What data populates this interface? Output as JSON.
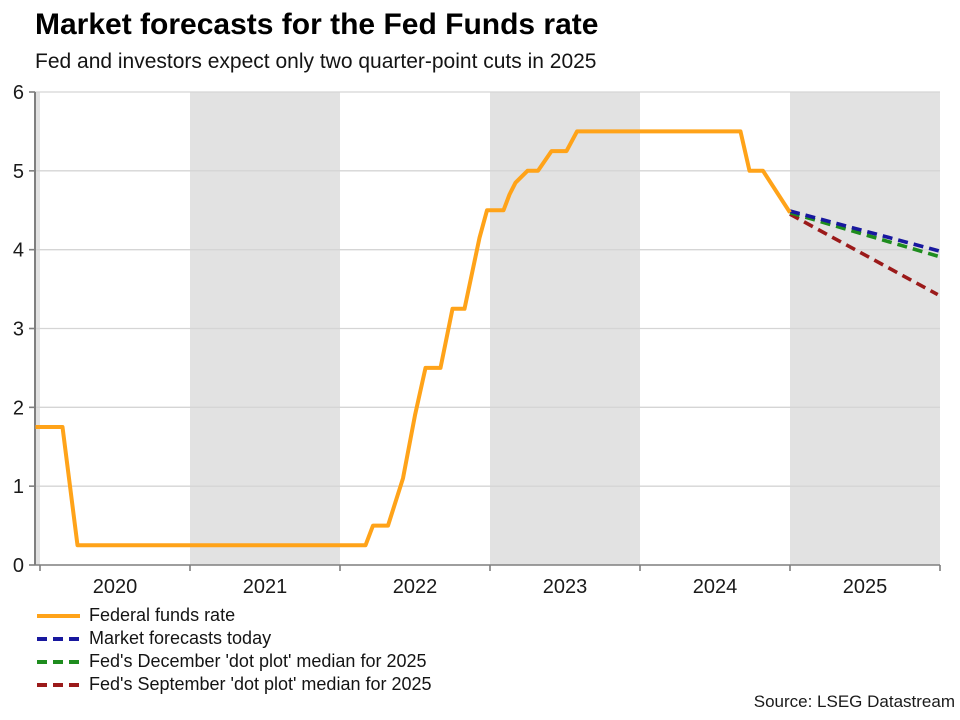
{
  "header": {
    "title": "Market forecasts for the Fed Funds rate",
    "subtitle": "Fed and investors expect only two quarter-point cuts in 2025"
  },
  "footer": {
    "source": "Source: LSEG Datastream"
  },
  "chart_data": {
    "type": "line",
    "title": "Market forecasts for the Fed Funds rate",
    "subtitle": "Fed and investors expect only two quarter-point cuts in 2025",
    "xlabel": "",
    "ylabel": "",
    "x_domain": [
      2019.967,
      2026.0
    ],
    "ylim": [
      0,
      6
    ],
    "y_ticks": [
      0,
      1,
      2,
      3,
      4,
      5,
      6
    ],
    "x_tick_years": [
      2020,
      2021,
      2022,
      2023,
      2024,
      2025,
      2026
    ],
    "x_tick_labels": [
      "2020",
      "2021",
      "2022",
      "2023",
      "2024",
      "2025"
    ],
    "grid": "horizontal",
    "legend_position": "bottom-left",
    "shaded_year_bands": [
      [
        2019.967,
        2020.0
      ],
      [
        2021.0,
        2022.0
      ],
      [
        2023.0,
        2024.0
      ],
      [
        2025.0,
        2026.0
      ]
    ],
    "colors": {
      "band": "#e2e2e2",
      "gridline": "#d5d5d5",
      "axis": "#7f7f7f",
      "tick_text": "#1a1a1a"
    },
    "series": [
      {
        "name": "Federal funds rate",
        "color": "#FFA319",
        "style": "solid",
        "points": [
          [
            2019.97,
            1.75
          ],
          [
            2020.15,
            1.75
          ],
          [
            2020.25,
            0.25
          ],
          [
            2022.17,
            0.25
          ],
          [
            2022.22,
            0.5
          ],
          [
            2022.32,
            0.5
          ],
          [
            2022.42,
            1.1
          ],
          [
            2022.5,
            1.9
          ],
          [
            2022.57,
            2.5
          ],
          [
            2022.67,
            2.5
          ],
          [
            2022.75,
            3.25
          ],
          [
            2022.83,
            3.25
          ],
          [
            2022.93,
            4.15
          ],
          [
            2022.98,
            4.5
          ],
          [
            2023.09,
            4.5
          ],
          [
            2023.13,
            4.7
          ],
          [
            2023.17,
            4.85
          ],
          [
            2023.25,
            5.0
          ],
          [
            2023.32,
            5.0
          ],
          [
            2023.41,
            5.25
          ],
          [
            2023.51,
            5.25
          ],
          [
            2023.58,
            5.5
          ],
          [
            2024.67,
            5.5
          ],
          [
            2024.73,
            5.0
          ],
          [
            2024.82,
            5.0
          ],
          [
            2025.0,
            4.47
          ]
        ]
      },
      {
        "name": "Market forecasts today",
        "color": "#18189E",
        "style": "dashed",
        "points": [
          [
            2025.0,
            4.49
          ],
          [
            2026.0,
            3.98
          ]
        ]
      },
      {
        "name": "Fed's December 'dot plot' median for 2025",
        "color": "#1E8C1E",
        "style": "dashed",
        "points": [
          [
            2025.0,
            4.47
          ],
          [
            2026.0,
            3.91
          ]
        ]
      },
      {
        "name": "Fed's September 'dot plot' median for 2025",
        "color": "#9B1A1A",
        "style": "dashed",
        "points": [
          [
            2025.0,
            4.45
          ],
          [
            2025.985,
            3.43
          ]
        ]
      }
    ]
  }
}
